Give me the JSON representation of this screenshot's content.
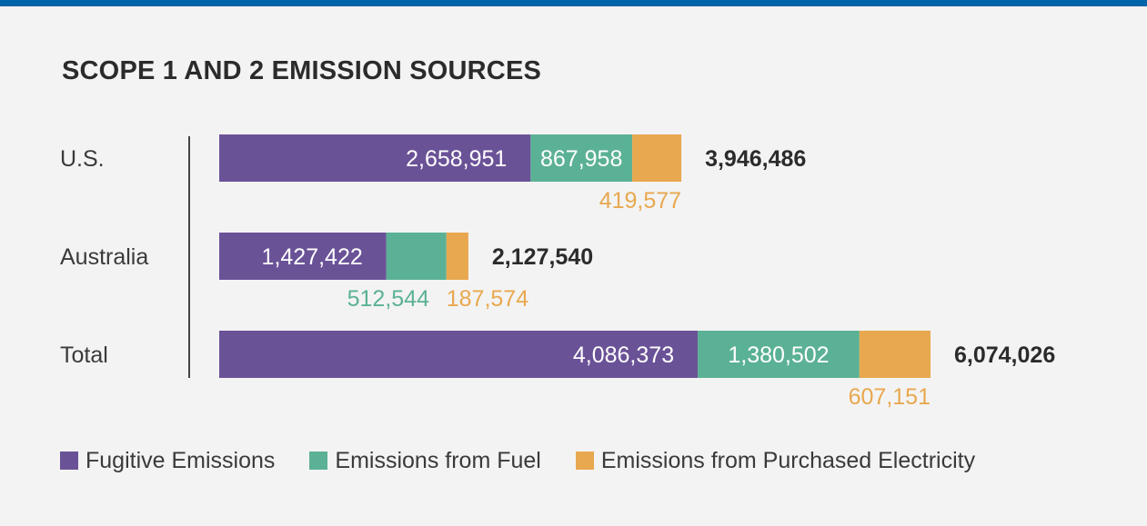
{
  "colors": {
    "topbar": "#0064a8",
    "fugitive": "#6a5297",
    "fuel": "#5bb195",
    "electricity": "#e8a84f",
    "total_text": "#2b2b2b",
    "label_text": "#3a3a3a"
  },
  "chart_data": {
    "type": "bar",
    "orientation": "horizontal",
    "stacked": true,
    "title": "SCOPE 1 AND 2 EMISSION SOURCES",
    "categories": [
      "U.S.",
      "Australia",
      "Total"
    ],
    "series": [
      {
        "name": "Fugitive Emissions",
        "values": [
          2658951,
          1427422,
          4086373
        ],
        "labels": [
          "2,658,951",
          "1,427,422",
          "4,086,373"
        ]
      },
      {
        "name": "Emissions from Fuel",
        "values": [
          867958,
          512544,
          1380502
        ],
        "labels": [
          "867,958",
          "512,544",
          "1,380,502"
        ]
      },
      {
        "name": "Emissions from Purchased Electricity",
        "values": [
          419577,
          187574,
          607151
        ],
        "labels": [
          "419,577",
          "187,574",
          "607,151"
        ]
      }
    ],
    "totals": [
      3946486,
      2127540,
      6074026
    ],
    "total_labels": [
      "3,946,486",
      "2,127,540",
      "6,074,026"
    ],
    "grid": false,
    "legend_position": "bottom-left"
  }
}
